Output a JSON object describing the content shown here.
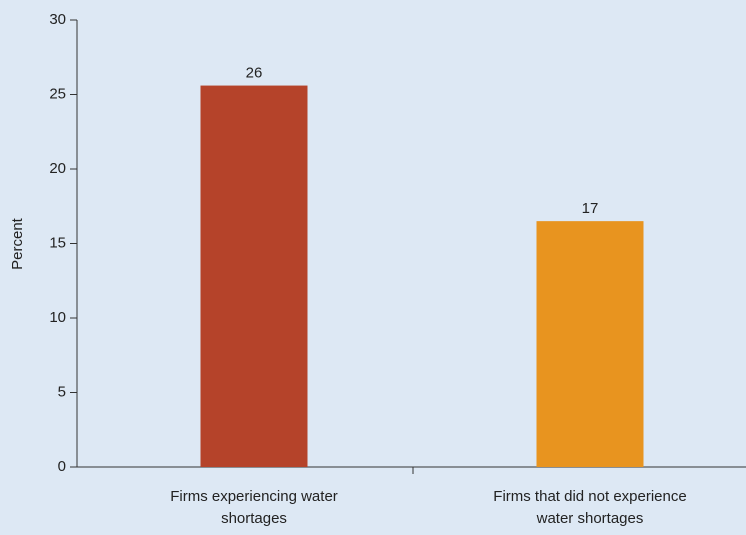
{
  "chart_data": {
    "type": "bar",
    "y_label": "Percent",
    "categories": [
      "Firms experiencing water shortages",
      "Firms that did not experience water shortages"
    ],
    "series": [
      {
        "values": [
          25.6,
          16.5
        ],
        "value_labels": [
          "26",
          "17"
        ],
        "colors": [
          "#b5432a",
          "#e8941f"
        ]
      }
    ],
    "ylim": [
      0,
      30
    ],
    "yticks": [
      0,
      5,
      10,
      15,
      20,
      25,
      30
    ],
    "grid": false
  }
}
